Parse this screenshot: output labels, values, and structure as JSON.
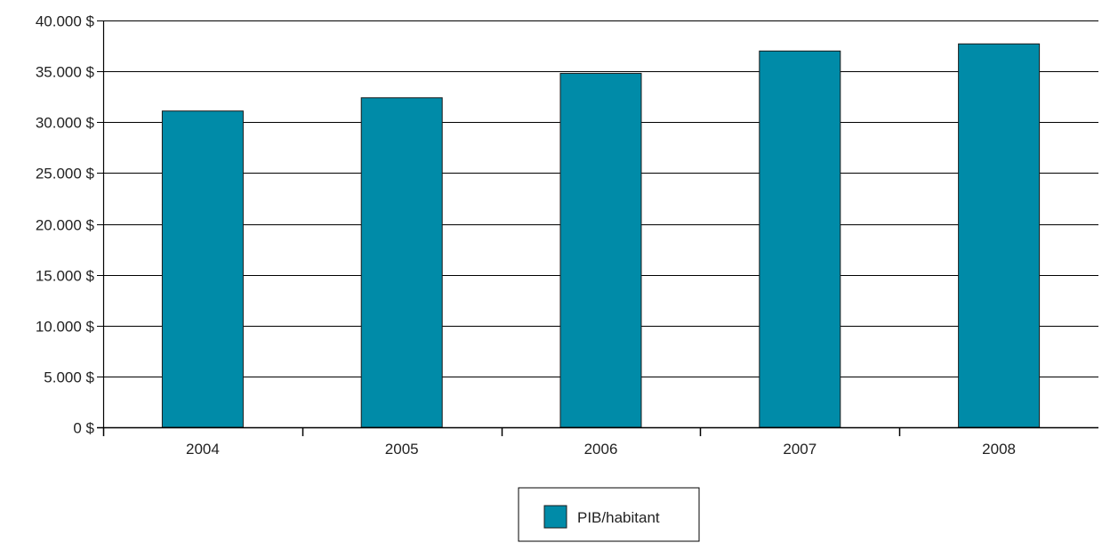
{
  "chart_data": {
    "type": "bar",
    "categories": [
      "2004",
      "2005",
      "2006",
      "2007",
      "2008"
    ],
    "series": [
      {
        "name": "PIB/habitant",
        "values": [
          31100,
          32400,
          34800,
          37000,
          37700
        ]
      }
    ],
    "y_ticks": [
      0,
      5000,
      10000,
      15000,
      20000,
      25000,
      30000,
      35000,
      40000
    ],
    "y_tick_labels": [
      "0 $",
      "5.000 $",
      "10.000 $",
      "15.000 $",
      "20.000 $",
      "25.000 $",
      "30.000 $",
      "35.000 $",
      "40.000 $"
    ],
    "ylim": [
      0,
      40000
    ],
    "title": "",
    "xlabel": "",
    "ylabel": "",
    "grid": "horizontal",
    "legend_position": "bottom-center",
    "colors": {
      "bar": "#008ba8",
      "bar_stroke": "#1a1a1a",
      "grid": "#000000",
      "axis": "#000000"
    }
  }
}
